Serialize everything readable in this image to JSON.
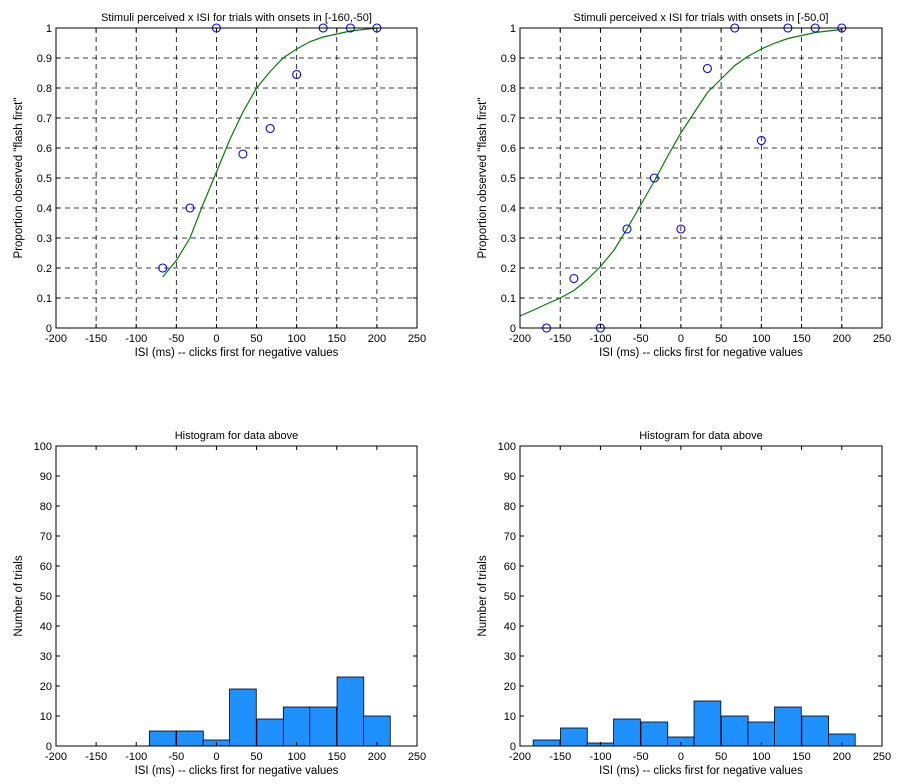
{
  "chart_data": [
    {
      "type": "scatter",
      "title": "Stimuli perceived x ISI for trials with onsets in [-160,-50]",
      "xlabel": "ISI (ms) -- clicks first for negative values",
      "ylabel": "Proportion observed \"flash first\"",
      "xlim": [
        -200,
        250
      ],
      "ylim": [
        0,
        1
      ],
      "xticks": [
        -200,
        -150,
        -100,
        -50,
        0,
        50,
        100,
        150,
        200,
        250
      ],
      "yticks": [
        0,
        0.1,
        0.2,
        0.3,
        0.4,
        0.5,
        0.6,
        0.7,
        0.8,
        0.9,
        1
      ],
      "ytick_labels": [
        "0",
        "0.1",
        "0.2",
        "0.3",
        "0.4",
        "0.5",
        "0.6",
        "0.7",
        "0.8",
        "0.9",
        "1"
      ],
      "grid": true,
      "series": [
        {
          "kind": "points",
          "color": "#0000ff",
          "x": [
            -67,
            -33,
            0,
            33,
            67,
            100,
            133,
            167,
            200
          ],
          "y": [
            0.2,
            0.4,
            1.0,
            0.58,
            0.665,
            0.845,
            1.0,
            1.0,
            1.0
          ]
        },
        {
          "kind": "fit-line",
          "color": "#008000",
          "x": [
            -67,
            -50,
            -33,
            -17,
            0,
            17,
            33,
            50,
            67,
            83,
            100,
            117,
            133,
            150,
            167,
            183,
            200
          ],
          "y": [
            0.17,
            0.225,
            0.3,
            0.41,
            0.52,
            0.63,
            0.72,
            0.8,
            0.855,
            0.9,
            0.93,
            0.955,
            0.97,
            0.98,
            0.99,
            0.995,
            1.0
          ]
        }
      ]
    },
    {
      "type": "scatter",
      "title": "Stimuli perceived x ISI for trials with onsets in [-50,0]",
      "xlabel": "ISI (ms) -- clicks first for negative values",
      "ylabel": "Proportion observed \"flash first\"",
      "xlim": [
        -200,
        250
      ],
      "ylim": [
        0,
        1
      ],
      "xticks": [
        -200,
        -150,
        -100,
        -50,
        0,
        50,
        100,
        150,
        200,
        250
      ],
      "yticks": [
        0,
        0.1,
        0.2,
        0.3,
        0.4,
        0.5,
        0.6,
        0.7,
        0.8,
        0.9,
        1
      ],
      "ytick_labels": [
        "0",
        "0.1",
        "0.2",
        "0.3",
        "0.4",
        "0.5",
        "0.6",
        "0.7",
        "0.8",
        "0.9",
        "1"
      ],
      "grid": true,
      "series": [
        {
          "kind": "points",
          "color": "#0000ff",
          "x": [
            -167,
            -133,
            -100,
            -67,
            -33,
            0,
            33,
            67,
            100,
            133,
            167,
            200
          ],
          "y": [
            0.0,
            0.165,
            0.0,
            0.33,
            0.5,
            0.33,
            0.865,
            1.0,
            0.625,
            1.0,
            1.0,
            1.0
          ]
        },
        {
          "kind": "fit-line",
          "color": "#008000",
          "x": [
            -200,
            -183,
            -167,
            -150,
            -133,
            -117,
            -100,
            -83,
            -67,
            -50,
            -33,
            -17,
            0,
            17,
            33,
            50,
            67,
            83,
            100,
            117,
            133,
            150,
            167,
            183,
            200
          ],
          "y": [
            0.04,
            0.06,
            0.08,
            0.1,
            0.125,
            0.16,
            0.205,
            0.26,
            0.33,
            0.41,
            0.49,
            0.57,
            0.65,
            0.72,
            0.785,
            0.83,
            0.875,
            0.905,
            0.93,
            0.95,
            0.965,
            0.975,
            0.985,
            0.99,
            0.995
          ]
        }
      ]
    },
    {
      "type": "bar",
      "title": "Histogram for data above",
      "xlabel": "ISI (ms) -- clicks first for negative values",
      "ylabel": "Number of trials",
      "xlim": [
        -200,
        250
      ],
      "ylim": [
        0,
        100
      ],
      "xticks": [
        -200,
        -150,
        -100,
        -50,
        0,
        50,
        100,
        150,
        200,
        250
      ],
      "yticks": [
        0,
        10,
        20,
        30,
        40,
        50,
        60,
        70,
        80,
        90,
        100
      ],
      "grid": false,
      "bar_color": "#1e90ff",
      "bin_width": 33.3,
      "centers": [
        -67,
        -33,
        0,
        33,
        67,
        100,
        133,
        167,
        200
      ],
      "values": [
        5,
        5,
        2,
        19,
        9,
        13,
        13,
        23,
        10
      ]
    },
    {
      "type": "bar",
      "title": "Histogram for data above",
      "xlabel": "ISI (ms) -- clicks first for negative values",
      "ylabel": "Number of trials",
      "xlim": [
        -200,
        250
      ],
      "ylim": [
        0,
        100
      ],
      "xticks": [
        -200,
        -150,
        -100,
        -50,
        0,
        50,
        100,
        150,
        200,
        250
      ],
      "yticks": [
        0,
        10,
        20,
        30,
        40,
        50,
        60,
        70,
        80,
        90,
        100
      ],
      "grid": false,
      "bar_color": "#1e90ff",
      "bin_width": 33.3,
      "centers": [
        -167,
        -133,
        -100,
        -67,
        -33,
        0,
        33,
        67,
        100,
        133,
        167,
        200
      ],
      "values": [
        2,
        6,
        1,
        9,
        8,
        3,
        15,
        10,
        8,
        13,
        10,
        4
      ]
    }
  ]
}
